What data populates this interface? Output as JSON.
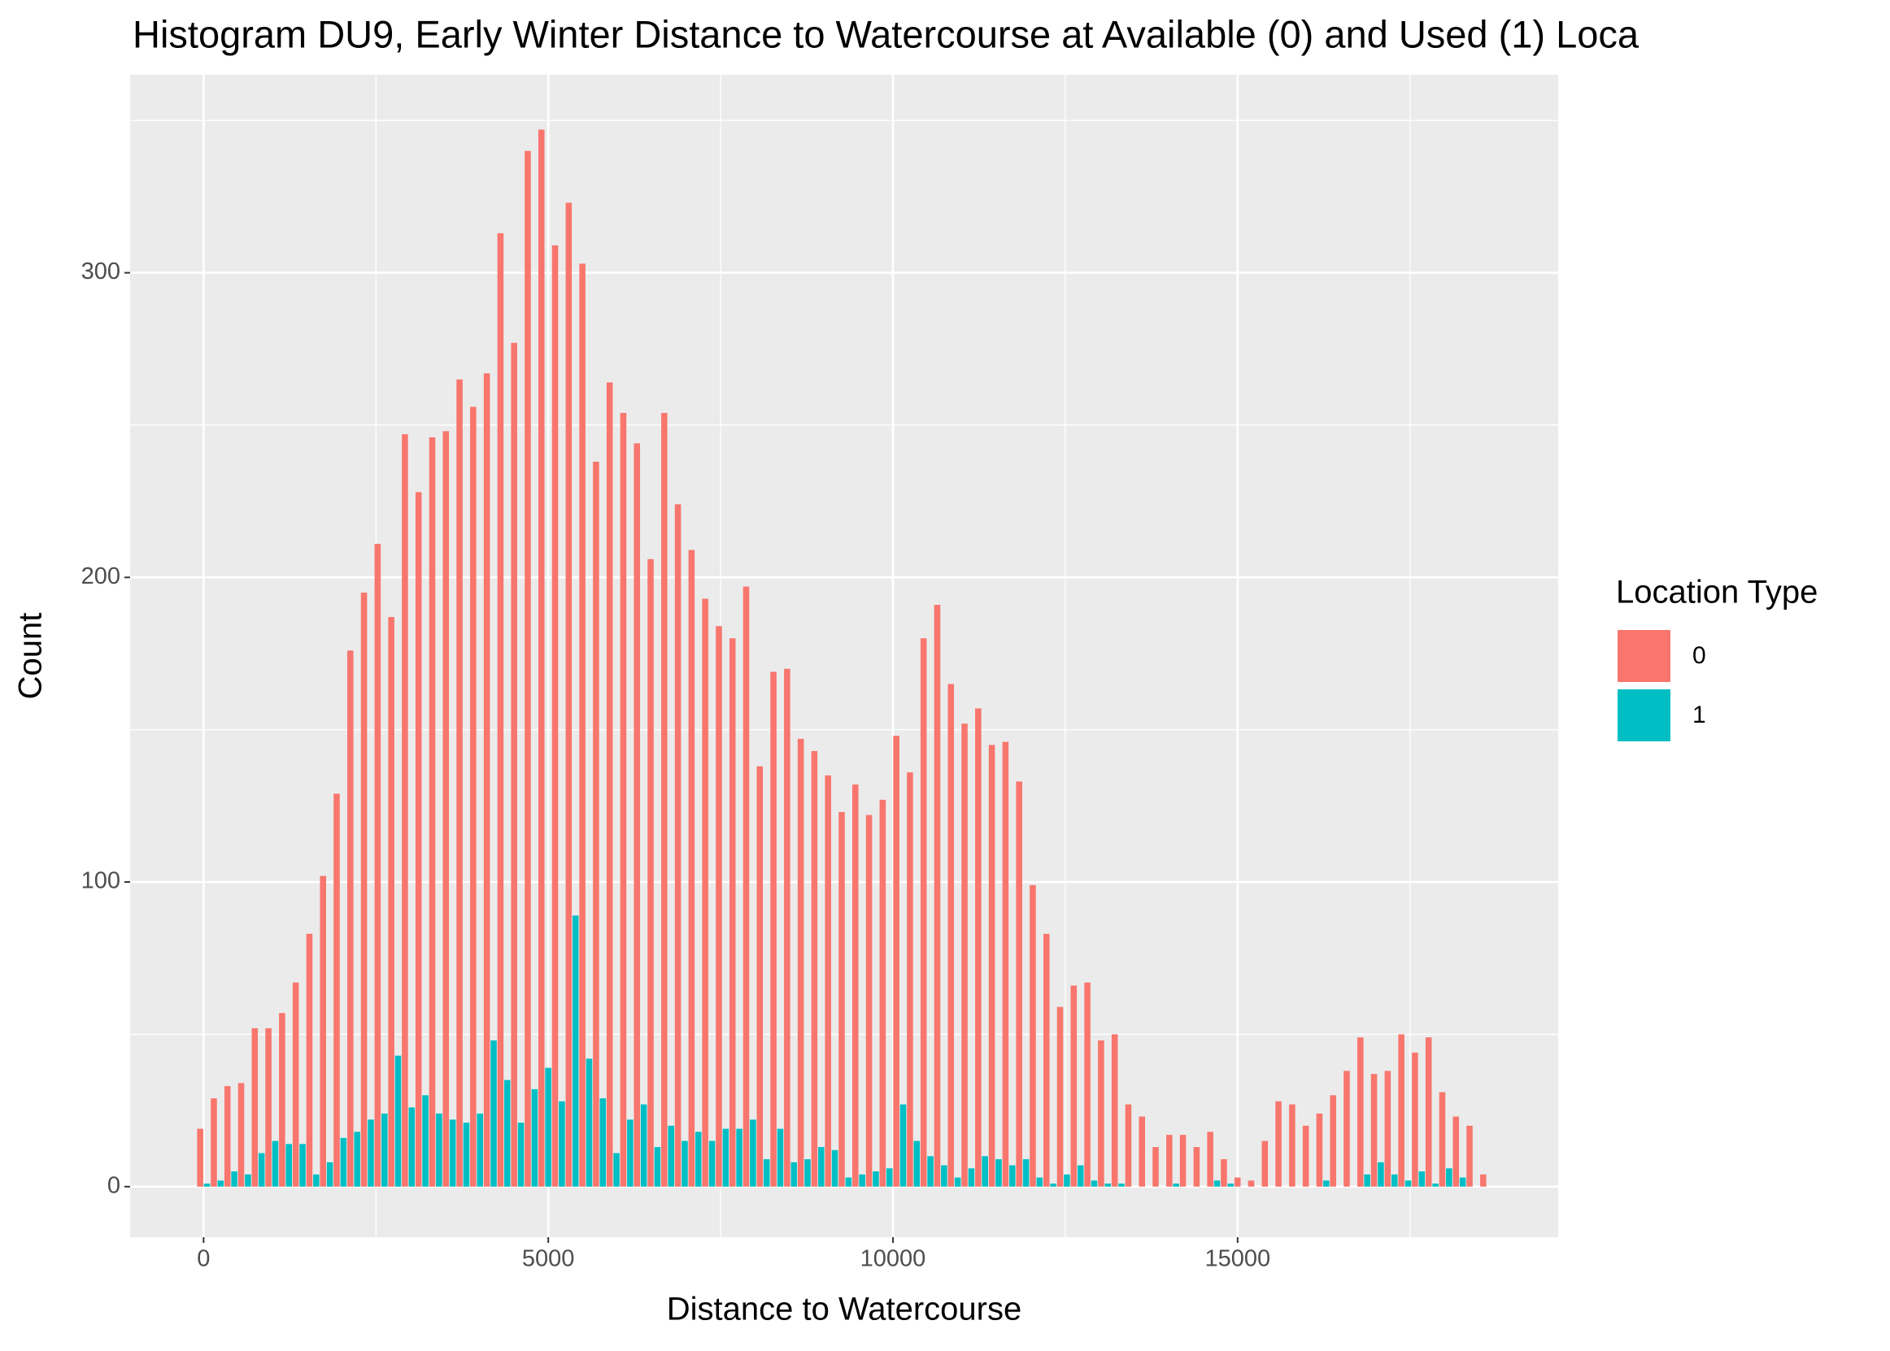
{
  "chart_data": {
    "type": "histogram",
    "title": "Histogram DU9, Early Winter Distance to Watercourse at Available (0) and Used (1) Loca",
    "xlabel": "Distance to Watercourse",
    "ylabel": "Count",
    "legend_title": "Location Type",
    "legend_position": "right",
    "grid": true,
    "bins": [
      -99,
      99,
      297,
      495,
      693,
      891,
      1089,
      1287,
      1485,
      1683,
      1881,
      2079,
      2277,
      2475,
      2673,
      2871,
      3069,
      3267,
      3465,
      3663,
      3861,
      4059,
      4257,
      4455,
      4653,
      4851,
      5049,
      5247,
      5445,
      5643,
      5841,
      6039,
      6237,
      6435,
      6633,
      6831,
      7029,
      7227,
      7425,
      7623,
      7821,
      8019,
      8217,
      8415,
      8613,
      8811,
      9009,
      9207,
      9405,
      9603,
      9801,
      9999,
      10197,
      10395,
      10593,
      10791,
      10989,
      11187,
      11385,
      11583,
      11781,
      11979,
      12177,
      12375,
      12573,
      12771,
      12969,
      13167,
      13365,
      13563,
      13761,
      13959,
      14157,
      14355,
      14553,
      14751,
      14949,
      15147,
      15345,
      15543,
      15741,
      15939,
      16137,
      16335,
      16533,
      16731,
      16929,
      17127,
      17325,
      17523,
      17721,
      17919,
      18117,
      18315,
      18513,
      18711
    ],
    "series": [
      {
        "name": "0",
        "color": "#F8766D",
        "values": [
          19,
          29,
          33,
          34,
          52,
          52,
          57,
          67,
          83,
          102,
          129,
          176,
          195,
          211,
          187,
          247,
          228,
          246,
          248,
          265,
          256,
          267,
          313,
          277,
          340,
          347,
          309,
          323,
          303,
          238,
          264,
          254,
          244,
          206,
          254,
          224,
          209,
          193,
          184,
          180,
          197,
          138,
          169,
          170,
          147,
          143,
          135,
          123,
          132,
          122,
          127,
          148,
          136,
          180,
          191,
          165,
          152,
          157,
          145,
          146,
          133,
          99,
          83,
          59,
          66,
          67,
          48,
          50,
          27,
          23,
          13,
          17,
          17,
          13,
          18,
          9,
          3,
          2,
          15,
          28,
          27,
          20,
          24,
          30,
          38,
          49,
          37,
          38,
          50,
          44,
          49,
          31,
          23,
          20,
          4
        ]
      },
      {
        "name": "1",
        "color": "#00BFC4",
        "values": [
          1,
          2,
          5,
          4,
          11,
          15,
          14,
          14,
          4,
          8,
          16,
          18,
          22,
          24,
          43,
          26,
          30,
          24,
          22,
          21,
          24,
          48,
          35,
          21,
          32,
          39,
          28,
          89,
          42,
          29,
          11,
          22,
          27,
          13,
          20,
          15,
          18,
          15,
          19,
          19,
          22,
          9,
          19,
          8,
          9,
          13,
          12,
          3,
          4,
          5,
          6,
          27,
          15,
          10,
          7,
          3,
          6,
          10,
          9,
          7,
          9,
          3,
          1,
          4,
          7,
          2,
          1,
          1,
          0,
          0,
          0,
          1,
          0,
          0,
          2,
          1,
          0,
          0,
          0,
          0,
          0,
          0,
          2,
          0,
          0,
          4,
          8,
          4,
          2,
          5,
          1,
          6,
          3,
          0,
          0
        ]
      }
    ],
    "xlim": [
      -1066,
      19650
    ],
    "xticks": [
      0,
      5000,
      10000,
      15000
    ],
    "ylim": [
      -16.6,
      365
    ],
    "yticks": [
      0,
      100,
      200,
      300
    ]
  }
}
